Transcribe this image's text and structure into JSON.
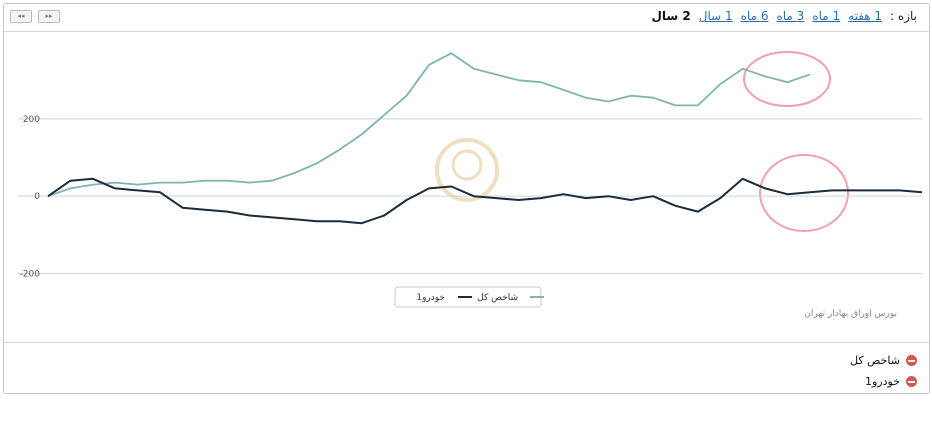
{
  "toolbar": {
    "label": "بازه :",
    "options": [
      "1 هفته",
      "1 ماه",
      "3 ماه",
      "6 ماه",
      "1 سال",
      "2 سال"
    ]
  },
  "chart_data": {
    "type": "line",
    "categories": [
      null,
      null,
      null,
      null,
      null,
      null,
      null,
      null,
      null,
      null,
      null,
      null,
      null,
      null,
      null,
      null,
      null,
      null,
      null,
      null,
      null,
      null,
      null,
      null,
      null,
      null,
      null,
      null,
      null,
      null,
      null,
      null,
      null,
      null,
      null,
      null,
      null,
      null,
      null,
      null
    ],
    "series": [
      {
        "name": "شاخص کل",
        "color": "#7fb5ae",
        "values": [
          0,
          20,
          30,
          35,
          30,
          35,
          35,
          40,
          40,
          35,
          40,
          60,
          85,
          120,
          160,
          210,
          260,
          340,
          370,
          330,
          315,
          300,
          295,
          275,
          255,
          245,
          260,
          255,
          235,
          235,
          290,
          330,
          310,
          295,
          315,
          null,
          null,
          null,
          null,
          null
        ]
      },
      {
        "name": "خودرو1",
        "color": "#1b2b3b",
        "values": [
          0,
          40,
          45,
          20,
          15,
          10,
          -30,
          -35,
          -40,
          -50,
          -55,
          -60,
          -65,
          -65,
          -70,
          -50,
          -10,
          20,
          25,
          0,
          -5,
          -10,
          -5,
          5,
          -5,
          0,
          -10,
          0,
          -25,
          -40,
          -5,
          45,
          20,
          5,
          10,
          15,
          15,
          15,
          15,
          10
        ]
      }
    ],
    "ylim": [
      -230,
      425
    ],
    "yticks": [
      -200,
      0,
      200
    ],
    "grid": true,
    "credit": "بورس اوراق بهادار تهران"
  }
}
